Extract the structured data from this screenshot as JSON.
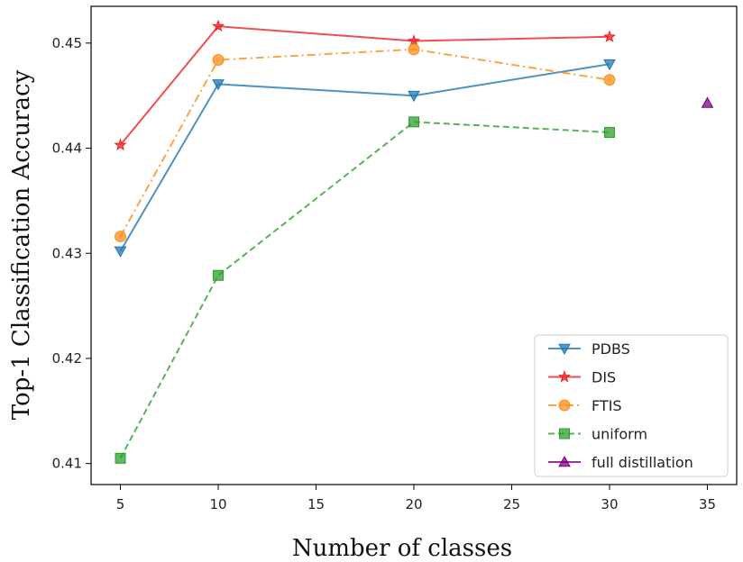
{
  "chart_data": {
    "type": "line",
    "title": "",
    "xlabel": "Number of classes",
    "ylabel": "Top-1 Classification Accuracy",
    "xlim": [
      3.5,
      36.5
    ],
    "ylim": [
      0.408,
      0.4535
    ],
    "xticks": [
      5,
      10,
      15,
      20,
      25,
      30,
      35
    ],
    "yticks": [
      0.41,
      0.42,
      0.43,
      0.44,
      0.45
    ],
    "grid": false,
    "legend_position": "bottom-right",
    "series": [
      {
        "name": "PDBS",
        "x": [
          5,
          10,
          20,
          30
        ],
        "y": [
          0.4302,
          0.4461,
          0.445,
          0.448
        ],
        "color": "#1f77b4",
        "marker": "triangle-down",
        "linestyle": "solid"
      },
      {
        "name": "DIS",
        "x": [
          5,
          10,
          20,
          30
        ],
        "y": [
          0.4403,
          0.4516,
          0.4502,
          0.4506
        ],
        "color": "#ee2222",
        "marker": "star",
        "linestyle": "solid"
      },
      {
        "name": "FTIS",
        "x": [
          5,
          10,
          20,
          30
        ],
        "y": [
          0.4316,
          0.4484,
          0.4494,
          0.4465
        ],
        "color": "#ff8c1a",
        "marker": "circle",
        "linestyle": "dashdot"
      },
      {
        "name": "uniform",
        "x": [
          5,
          10,
          20,
          30
        ],
        "y": [
          0.4105,
          0.4279,
          0.4425,
          0.4415
        ],
        "color": "#2ca02c",
        "marker": "square",
        "linestyle": "dashed"
      },
      {
        "name": "full distillation",
        "x": [
          35
        ],
        "y": [
          0.4443
        ],
        "color": "#800080",
        "marker": "triangle-up",
        "linestyle": "solid"
      }
    ]
  }
}
